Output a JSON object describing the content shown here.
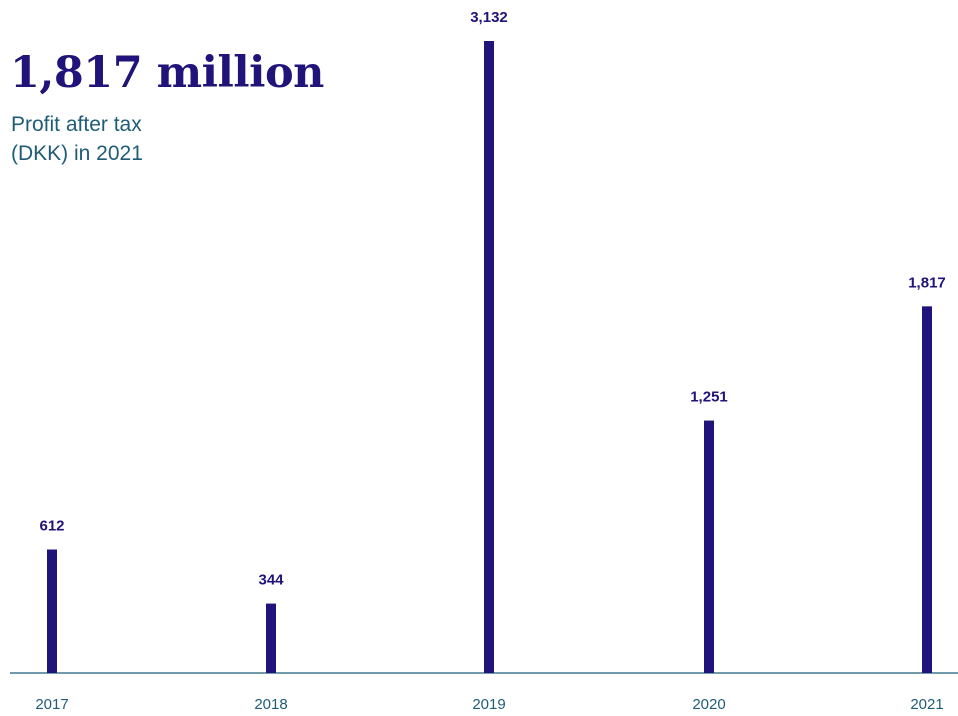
{
  "headline": "1,817 million",
  "subtitle": {
    "line1": "Profit after tax",
    "line2": "(DKK) in 2021"
  },
  "colors": {
    "bar": "#20137a",
    "axis": "#1f5c78",
    "headline": "#20137a",
    "subtitle": "#1f5c78"
  },
  "chart_data": {
    "type": "bar",
    "title": "1,817 million",
    "subtitle": "Profit after tax (DKK) in 2021",
    "categories": [
      "2017",
      "2018",
      "2019",
      "2020",
      "2021"
    ],
    "values": [
      612,
      344,
      3132,
      1251,
      1817
    ],
    "value_labels": [
      "612",
      "344",
      "3,132",
      "1,251",
      "1,817"
    ],
    "ylim": [
      0,
      3132
    ],
    "grid": false,
    "legend": "none"
  }
}
